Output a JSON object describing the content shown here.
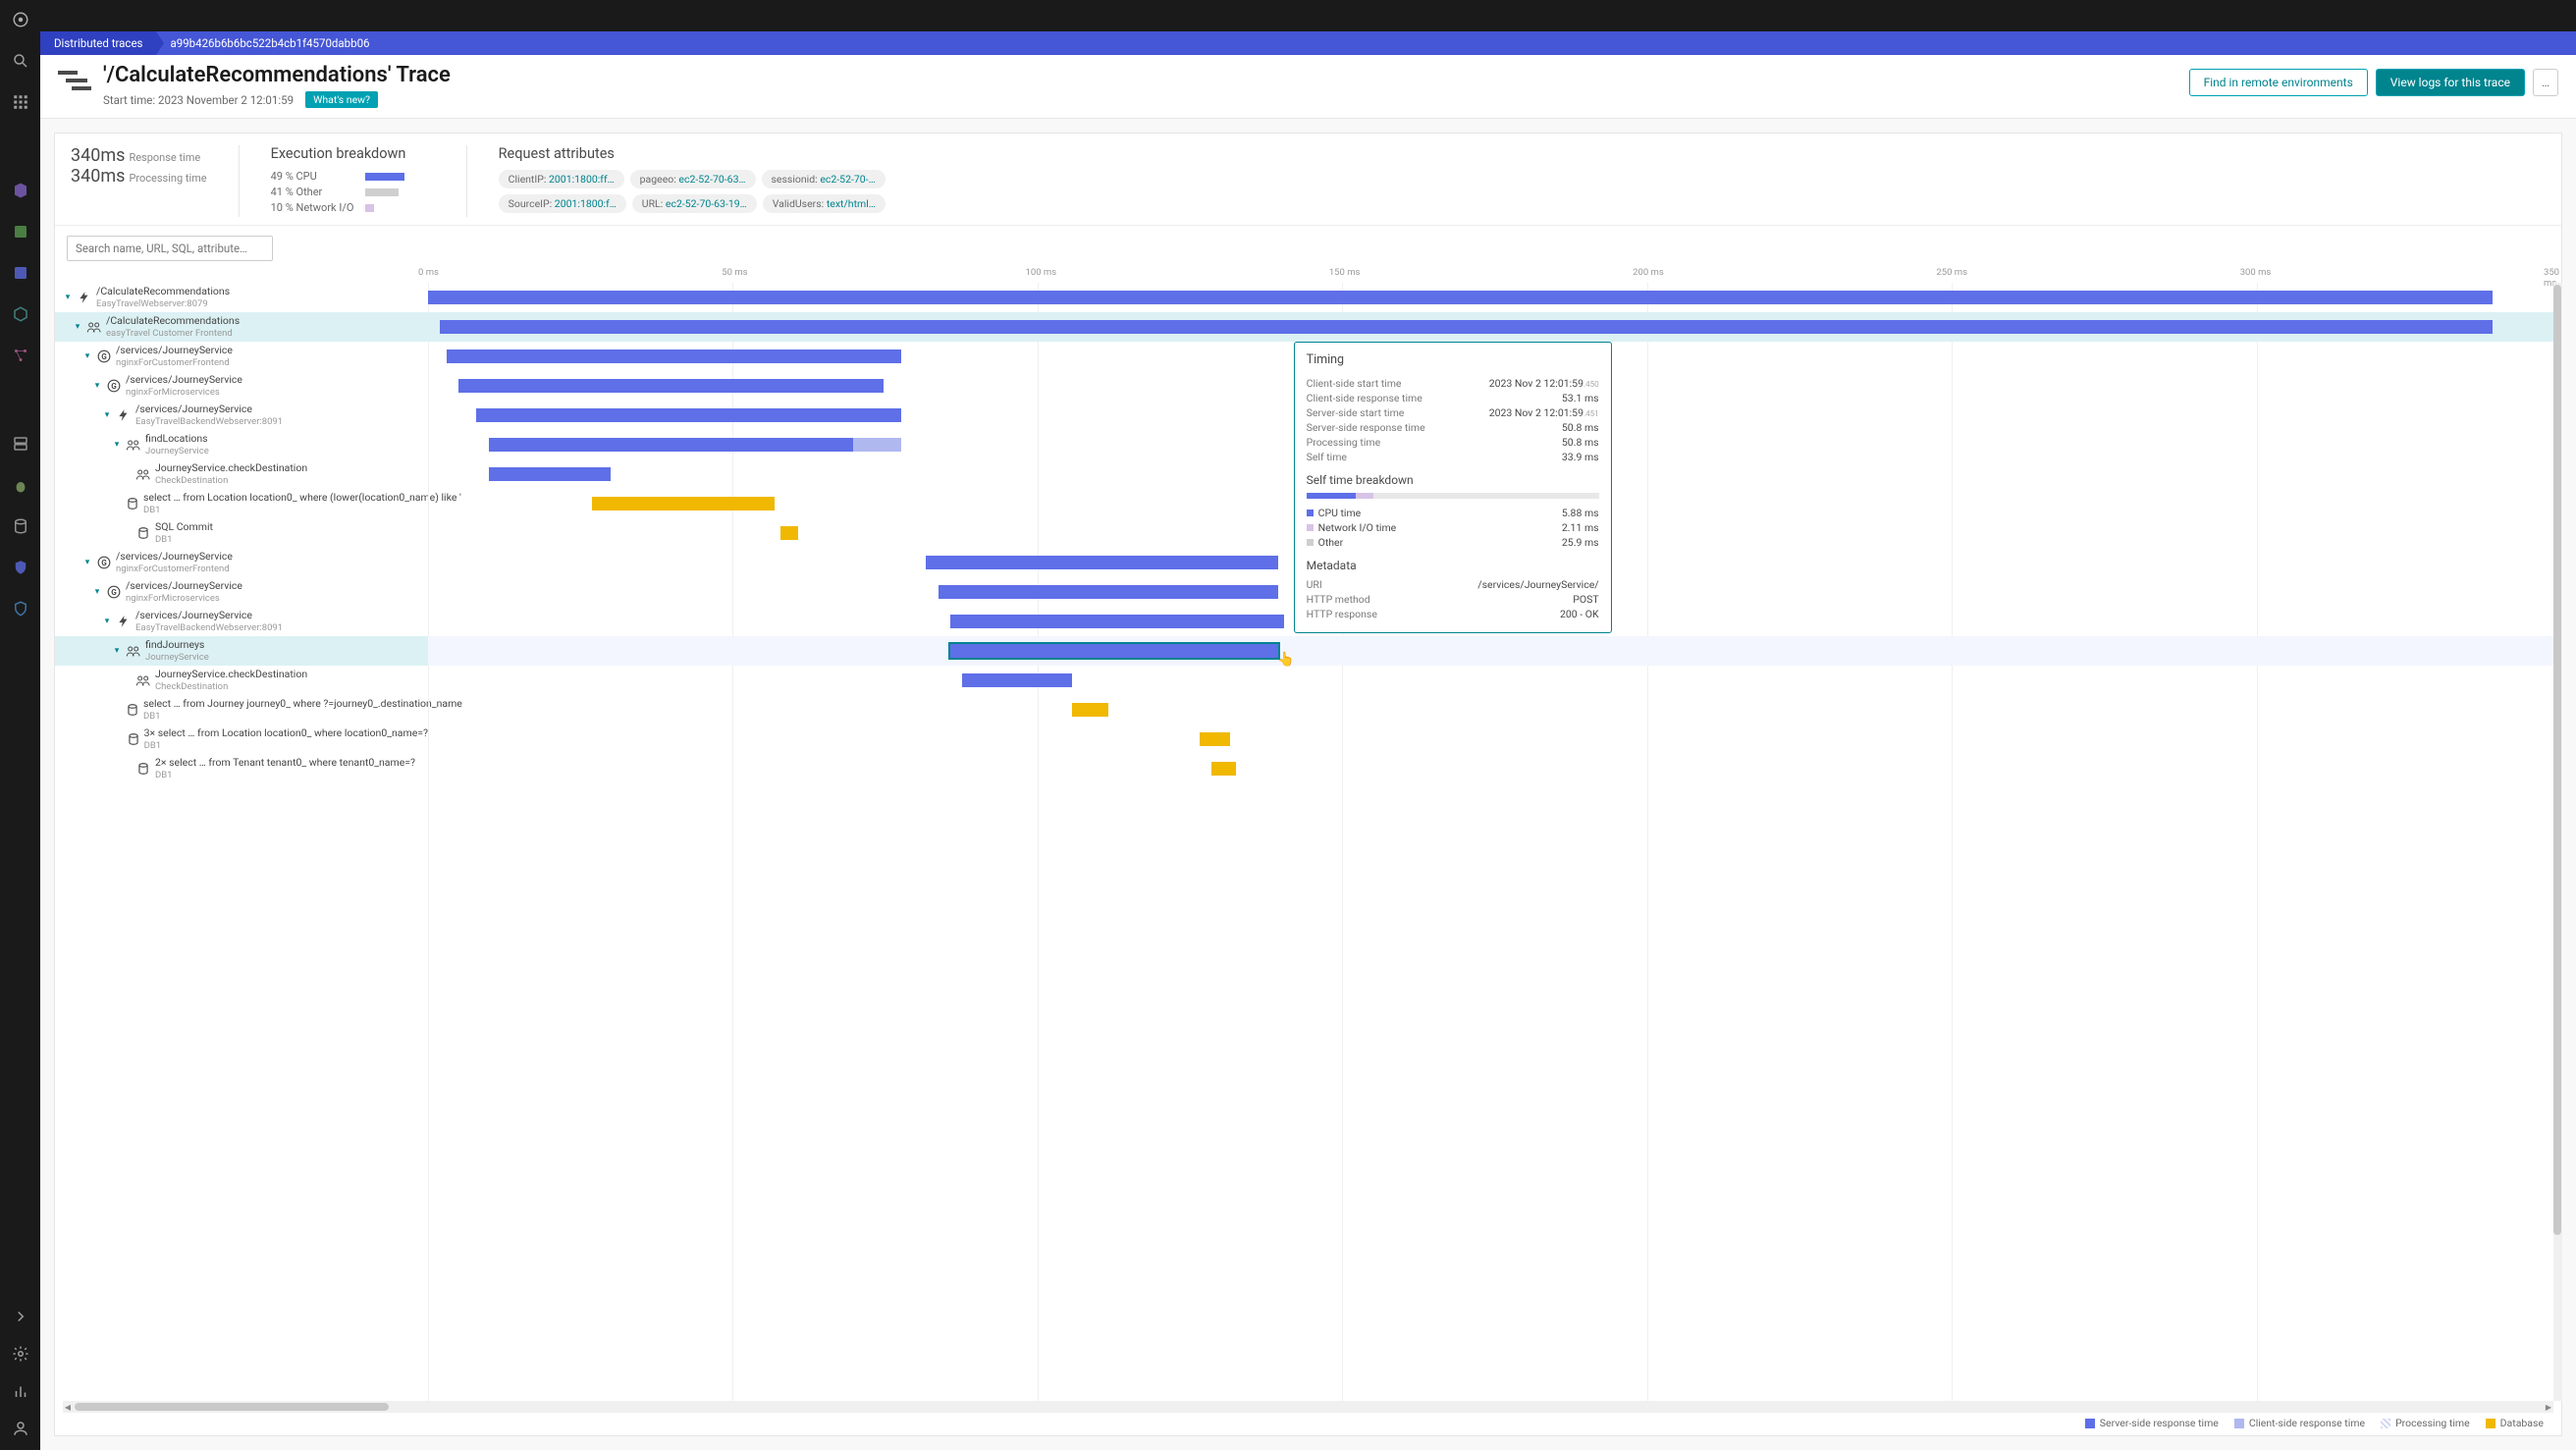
{
  "colors": {
    "server": "#5e6fe8",
    "client": "#b0b8f0",
    "processing": "#d0d6f6",
    "database": "#f0b800",
    "accent": "#00848e",
    "breadcrumb_bg": "#4556d6",
    "breadcrumb_first_bg": "#2f40c0"
  },
  "breadcrumb": {
    "first": "Distributed traces",
    "second": "a99b426b6b6bc522b4cb1f4570dabb06"
  },
  "header": {
    "title": "'/CalculateRecommendations' Trace",
    "start_label": "Start time:",
    "start_value": "2023 November 2 12:01:59",
    "whatsnew": "What's new?",
    "btn_find": "Find in remote environments",
    "btn_logs": "View logs for this trace",
    "btn_dots": "…"
  },
  "summary": {
    "response_ms": "340ms",
    "response_label": "Response time",
    "processing_ms": "340ms",
    "processing_label": "Processing time",
    "exec_title": "Execution breakdown",
    "exec": [
      {
        "label": "49 % CPU",
        "width": 40,
        "color": "#5e6fe8"
      },
      {
        "label": "41 % Other",
        "width": 34,
        "color": "#cfcfcf"
      },
      {
        "label": "10 % Network I/O",
        "width": 9,
        "color": "#d7c3e6"
      }
    ],
    "attr_title": "Request attributes",
    "attrs_row1": [
      {
        "k": "ClientIP:",
        "v": "2001:1800:ff…"
      },
      {
        "k": "pageeo:",
        "v": "ec2-52-70-63…"
      },
      {
        "k": "sessionid:",
        "v": "ec2-52-70-…"
      }
    ],
    "attrs_row2": [
      {
        "k": "SourceIP:",
        "v": "2001:1800:f…"
      },
      {
        "k": "URL:",
        "v": "ec2-52-70-63-19…"
      },
      {
        "k": "ValidUsers:",
        "v": "text/html…"
      }
    ]
  },
  "search_placeholder": "Search name, URL, SQL, attribute…",
  "axis": {
    "max_ms": 350,
    "ticks": [
      0,
      50,
      100,
      150,
      200,
      250,
      300,
      350
    ]
  },
  "rows": [
    {
      "indent": 0,
      "icon": "bolt",
      "name": "/CalculateRecommendations",
      "sub": "EasyTravelWebserver:8079",
      "bar": {
        "start": 0,
        "dur": 340,
        "color": "server"
      }
    },
    {
      "indent": 1,
      "icon": "users",
      "name": "/CalculateRecommendations",
      "sub": "easyTravel Customer Frontend",
      "bar": {
        "start": 2,
        "dur": 338,
        "color": "server"
      },
      "highlight": true
    },
    {
      "indent": 2,
      "icon": "G",
      "name": "/services/JourneyService",
      "sub": "nginxForCustomerFrontend",
      "bar": {
        "start": 3,
        "dur": 75,
        "color": "server"
      }
    },
    {
      "indent": 3,
      "icon": "G",
      "name": "/services/JourneyService",
      "sub": "nginxForMicroservices",
      "bar": {
        "start": 5,
        "dur": 70,
        "color": "server"
      }
    },
    {
      "indent": 4,
      "icon": "bolt",
      "name": "/services/JourneyService",
      "sub": "EasyTravelBackendWebserver:8091",
      "bar": {
        "start": 8,
        "dur": 70,
        "color": "server"
      }
    },
    {
      "indent": 5,
      "icon": "users",
      "name": "findLocations",
      "sub": "JourneyService",
      "bar": {
        "start": 10,
        "dur": 60,
        "color": "server",
        "client_ext": 8
      }
    },
    {
      "indent": 6,
      "icon": "users",
      "name": "JourneyService.checkDestination",
      "sub": "CheckDestination",
      "bar": {
        "start": 10,
        "dur": 20,
        "color": "server"
      }
    },
    {
      "indent": 6,
      "icon": "db",
      "name": "select … from Location location0_ where (lower(location0_name) like '",
      "sub": "DB1",
      "bar": {
        "start": 27,
        "dur": 30,
        "color": "database"
      }
    },
    {
      "indent": 6,
      "icon": "db",
      "name": "SQL Commit",
      "sub": "DB1",
      "bar": {
        "start": 58,
        "dur": 3,
        "color": "database"
      }
    },
    {
      "indent": 2,
      "icon": "G",
      "name": "/services/JourneyService",
      "sub": "nginxForCustomerFrontend",
      "bar": {
        "start": 82,
        "dur": 58,
        "color": "server"
      }
    },
    {
      "indent": 3,
      "icon": "G",
      "name": "/services/JourneyService",
      "sub": "nginxForMicroservices",
      "bar": {
        "start": 84,
        "dur": 56,
        "color": "server"
      }
    },
    {
      "indent": 4,
      "icon": "bolt",
      "name": "/services/JourneyService",
      "sub": "EasyTravelBackendWebserver:8091",
      "bar": {
        "start": 86,
        "dur": 55,
        "color": "server"
      }
    },
    {
      "indent": 5,
      "icon": "users",
      "name": "findJourneys",
      "sub": "JourneyService",
      "bar": {
        "start": 86,
        "dur": 54,
        "color": "server"
      },
      "selected": true
    },
    {
      "indent": 6,
      "icon": "users",
      "name": "JourneyService.checkDestination",
      "sub": "CheckDestination",
      "bar": {
        "start": 88,
        "dur": 18,
        "color": "server"
      }
    },
    {
      "indent": 6,
      "icon": "db",
      "name": "select … from Journey journey0_ where ?=journey0_.destination_name",
      "sub": "DB1",
      "bar": {
        "start": 106,
        "dur": 6,
        "color": "database"
      }
    },
    {
      "indent": 6,
      "icon": "db",
      "name": "3× select … from Location location0_ where location0_name=?",
      "sub": "DB1",
      "bar": {
        "start": 127,
        "dur": 5,
        "color": "database"
      }
    },
    {
      "indent": 6,
      "icon": "db",
      "name": "2× select … from Tenant tenant0_ where tenant0_name=?",
      "sub": "DB1",
      "bar": {
        "start": 129,
        "dur": 4,
        "color": "database"
      }
    }
  ],
  "popup": {
    "top_row": 2,
    "left_ms": 142,
    "timing_title": "Timing",
    "timing": [
      {
        "k": "Client-side start time",
        "v": "2023 Nov 2 12:01:59",
        "sub": ".450"
      },
      {
        "k": "Client-side response time",
        "v": "53.1 ms"
      },
      {
        "k": "Server-side start time",
        "v": "2023 Nov 2 12:01:59",
        "sub": ".451"
      },
      {
        "k": "Server-side response time",
        "v": "50.8 ms"
      },
      {
        "k": "Processing time",
        "v": "50.8 ms"
      },
      {
        "k": "Self time",
        "v": "33.9 ms"
      }
    ],
    "self_title": "Self time breakdown",
    "self_bar": [
      {
        "color": "#5e6fe8",
        "pct": 17
      },
      {
        "color": "#d7c3e6",
        "pct": 6
      },
      {
        "color": "#e8e8e8",
        "pct": 77
      }
    ],
    "self_items": [
      {
        "swatch": "#5e6fe8",
        "k": "CPU time",
        "v": "5.88 ms"
      },
      {
        "swatch": "#d7c3e6",
        "k": "Network I/O time",
        "v": "2.11 ms"
      },
      {
        "swatch": "#cfcfcf",
        "k": "Other",
        "v": "25.9 ms"
      }
    ],
    "meta_title": "Metadata",
    "meta": [
      {
        "k": "URI",
        "v": "/services/JourneyService/"
      },
      {
        "k": "HTTP method",
        "v": "POST"
      },
      {
        "k": "HTTP response",
        "v": "200 - OK"
      }
    ]
  },
  "legend": [
    {
      "label": "Server-side response time",
      "color": "#5e6fe8",
      "type": "solid"
    },
    {
      "label": "Client-side response time",
      "color": "#b0b8f0",
      "type": "solid"
    },
    {
      "label": "Processing time",
      "color": "#d0d6f6",
      "type": "hatch"
    },
    {
      "label": "Database",
      "color": "#f0b800",
      "type": "solid"
    }
  ]
}
